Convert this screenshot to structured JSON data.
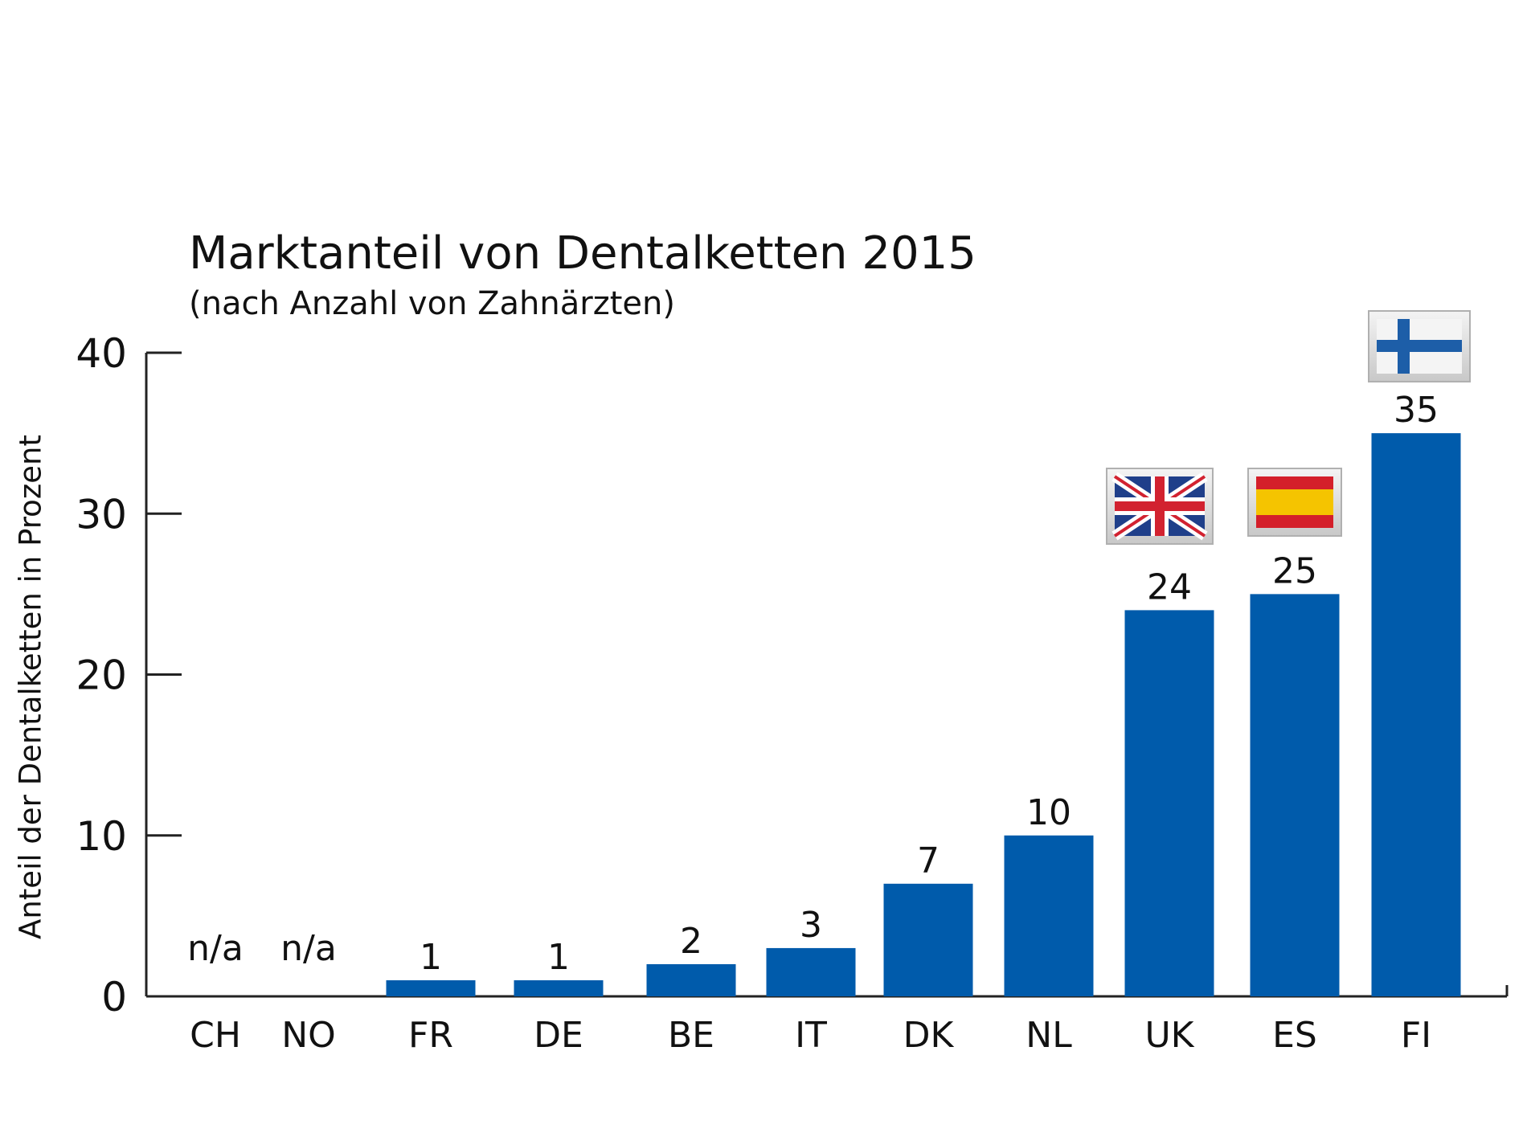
{
  "chart_data": {
    "type": "bar",
    "title": "Marktanteil von Dentalketten 2015",
    "subtitle": "(nach Anzahl von Zahnärzten)",
    "ylabel": "Anteil der Dentalketten in Prozent",
    "xlabel": "",
    "ylim": [
      0,
      40
    ],
    "yticks": [
      0,
      10,
      20,
      30,
      40
    ],
    "categories": [
      "CH",
      "NO",
      "FR",
      "DE",
      "BE",
      "IT",
      "DK",
      "NL",
      "UK",
      "ES",
      "FI"
    ],
    "values": [
      null,
      null,
      1,
      1,
      2,
      3,
      7,
      10,
      24,
      25,
      35
    ],
    "data_labels": [
      "n/a",
      "n/a",
      "1",
      "1",
      "2",
      "3",
      "7",
      "10",
      "24",
      "25",
      "35"
    ],
    "bar_color": "#005bab",
    "grid": false,
    "flags": [
      {
        "category": "UK",
        "icon": "uk-flag-icon"
      },
      {
        "category": "ES",
        "icon": "spain-flag-icon"
      },
      {
        "category": "FI",
        "icon": "finland-flag-icon"
      }
    ]
  }
}
